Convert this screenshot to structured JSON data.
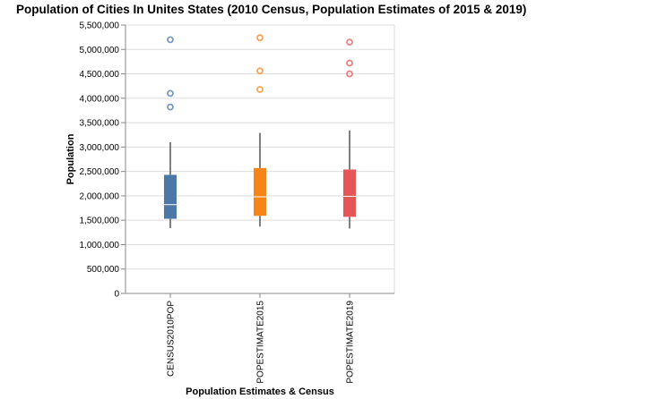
{
  "chart_data": {
    "type": "boxplot",
    "title": "Population of Cities In Unites States (2010 Census, Population Estimates of 2015 & 2019)",
    "xlabel": "Population Estimates & Census",
    "ylabel": "Population",
    "ylim": [
      0,
      5500000
    ],
    "yticks": [
      {
        "value": 0,
        "label": "0"
      },
      {
        "value": 500000,
        "label": "500,000"
      },
      {
        "value": 1000000,
        "label": "1,000,000"
      },
      {
        "value": 1500000,
        "label": "1,500,000"
      },
      {
        "value": 2000000,
        "label": "2,000,000"
      },
      {
        "value": 2500000,
        "label": "2,500,000"
      },
      {
        "value": 3000000,
        "label": "3,000,000"
      },
      {
        "value": 3500000,
        "label": "3,500,000"
      },
      {
        "value": 4000000,
        "label": "4,000,000"
      },
      {
        "value": 4500000,
        "label": "4,500,000"
      },
      {
        "value": 5000000,
        "label": "5,000,000"
      },
      {
        "value": 5500000,
        "label": "5,500,000"
      }
    ],
    "grid": true,
    "categories": [
      "CENSUS2010POP",
      "POPESTIMATE2015",
      "POPESTIMATE2019"
    ],
    "boxes": [
      {
        "category": "CENSUS2010POP",
        "color": "#4c78a8",
        "min": 1340000,
        "q1": 1530000,
        "median": 1820000,
        "q3": 2430000,
        "max": 3100000,
        "outliers": [
          3820000,
          4100000,
          5200000
        ]
      },
      {
        "category": "POPESTIMATE2015",
        "color": "#f58518",
        "min": 1370000,
        "q1": 1590000,
        "median": 1980000,
        "q3": 2570000,
        "max": 3290000,
        "outliers": [
          4180000,
          4560000,
          5240000
        ]
      },
      {
        "category": "POPESTIMATE2019",
        "color": "#e45756",
        "min": 1330000,
        "q1": 1570000,
        "median": 1990000,
        "q3": 2540000,
        "max": 3340000,
        "outliers": [
          4500000,
          4720000,
          5150000
        ]
      }
    ]
  }
}
